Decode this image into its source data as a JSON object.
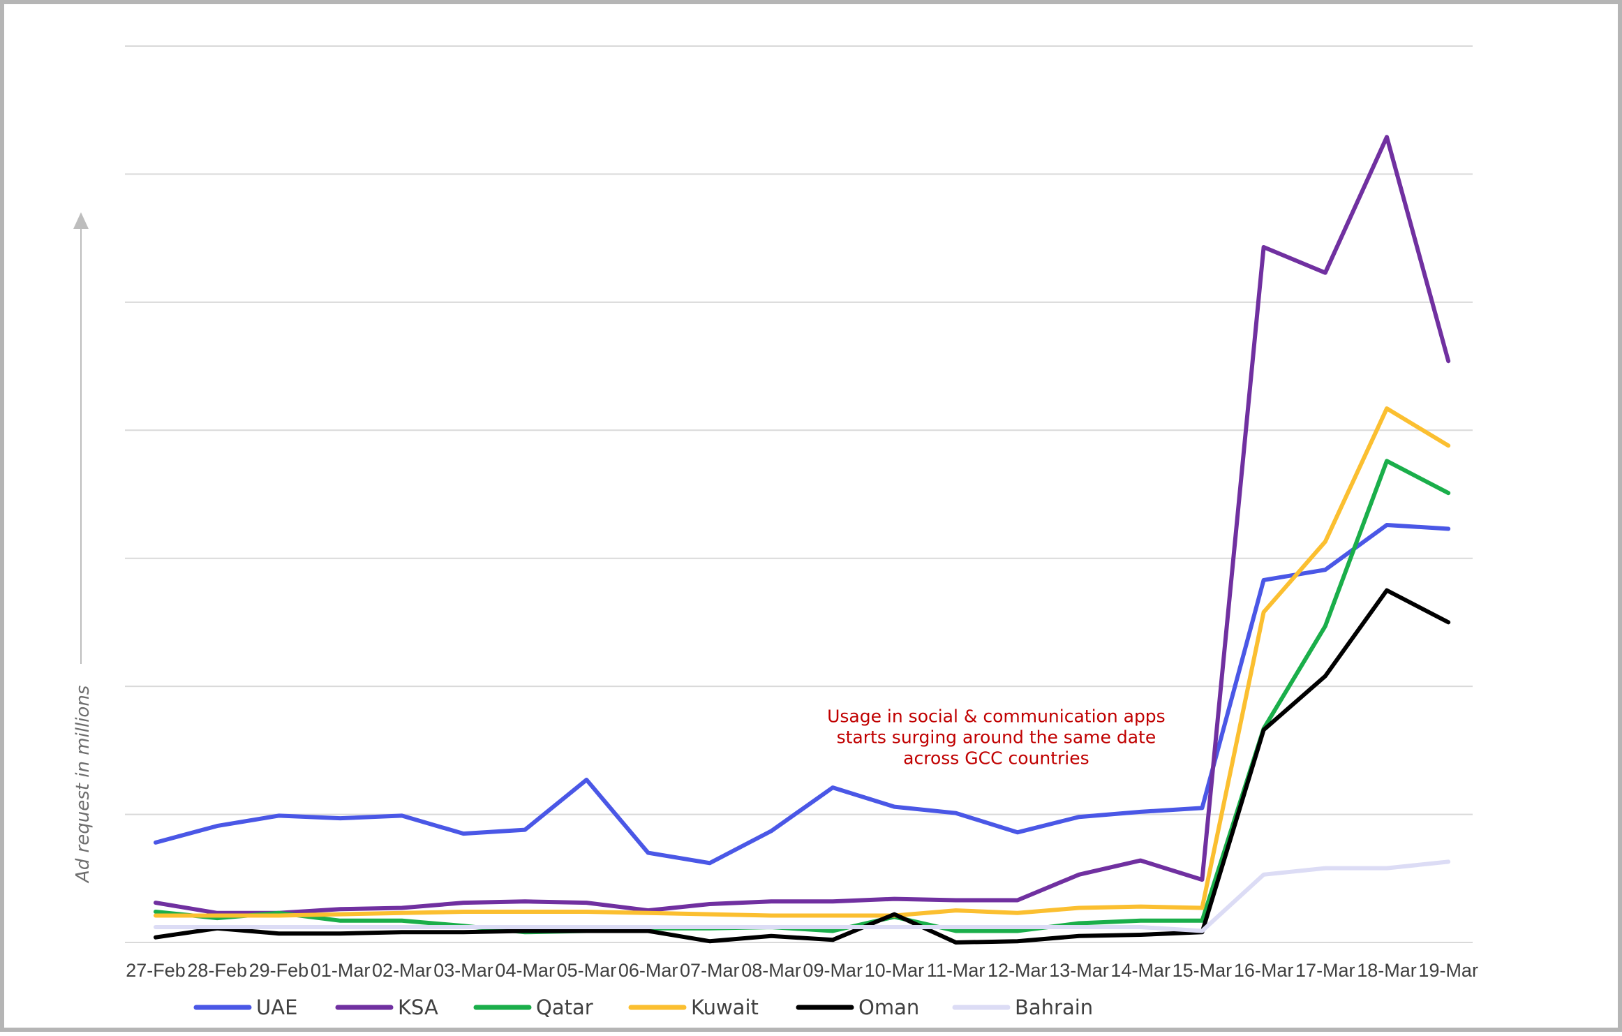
{
  "chart_data": {
    "type": "line",
    "title": "",
    "xlabel": "",
    "ylabel": "Ad request in millions",
    "ylim": [
      0,
      7
    ],
    "grid": true,
    "legend_position": "bottom",
    "categories": [
      "27-Feb",
      "28-Feb",
      "29-Feb",
      "01-Mar",
      "02-Mar",
      "03-Mar",
      "04-Mar",
      "05-Mar",
      "06-Mar",
      "07-Mar",
      "08-Mar",
      "09-Mar",
      "10-Mar",
      "11-Mar",
      "12-Mar",
      "13-Mar",
      "14-Mar",
      "15-Mar",
      "16-Mar",
      "17-Mar",
      "18-Mar",
      "19-Mar"
    ],
    "annotation": {
      "lines": [
        "Usage in social & communication apps",
        "starts surging around the same date",
        "across GCC countries"
      ],
      "anchor_category": "10-Mar",
      "anchor_value": 1.72
    },
    "series": [
      {
        "name": "UAE",
        "color": "#4a57e6",
        "values": [
          0.78,
          0.91,
          0.99,
          0.97,
          0.99,
          0.85,
          0.88,
          1.27,
          0.7,
          0.62,
          0.87,
          1.21,
          1.06,
          1.01,
          0.86,
          0.98,
          1.02,
          1.05,
          2.83,
          2.91,
          3.26,
          3.23
        ]
      },
      {
        "name": "KSA",
        "color": "#7030a0",
        "values": [
          0.31,
          0.23,
          0.23,
          0.26,
          0.27,
          0.31,
          0.32,
          0.31,
          0.25,
          0.3,
          0.32,
          0.32,
          0.34,
          0.33,
          0.33,
          0.53,
          0.64,
          0.49,
          5.43,
          5.23,
          6.29,
          4.54
        ]
      },
      {
        "name": "Qatar",
        "color": "#1aae4a",
        "values": [
          0.24,
          0.19,
          0.23,
          0.17,
          0.17,
          0.13,
          0.08,
          0.09,
          0.11,
          0.11,
          0.12,
          0.09,
          0.2,
          0.09,
          0.09,
          0.15,
          0.17,
          0.17,
          1.67,
          2.47,
          3.76,
          3.51
        ]
      },
      {
        "name": "Kuwait",
        "color": "#fbbf30",
        "values": [
          0.21,
          0.21,
          0.21,
          0.22,
          0.23,
          0.24,
          0.24,
          0.24,
          0.23,
          0.22,
          0.21,
          0.21,
          0.21,
          0.25,
          0.23,
          0.27,
          0.28,
          0.27,
          2.58,
          3.13,
          4.17,
          3.88
        ]
      },
      {
        "name": "Oman",
        "color": "#000000",
        "values": [
          0.04,
          0.11,
          0.07,
          0.07,
          0.08,
          0.08,
          0.09,
          0.09,
          0.09,
          0.01,
          0.05,
          0.02,
          0.22,
          0.0,
          0.01,
          0.05,
          0.06,
          0.08,
          1.66,
          2.08,
          2.75,
          2.5
        ]
      },
      {
        "name": "Bahrain",
        "color": "#dcdcf5",
        "values": [
          0.12,
          0.12,
          0.12,
          0.12,
          0.12,
          0.12,
          0.12,
          0.12,
          0.12,
          0.12,
          0.12,
          0.12,
          0.12,
          0.12,
          0.12,
          0.12,
          0.12,
          0.09,
          0.53,
          0.58,
          0.58,
          0.63
        ]
      }
    ]
  }
}
